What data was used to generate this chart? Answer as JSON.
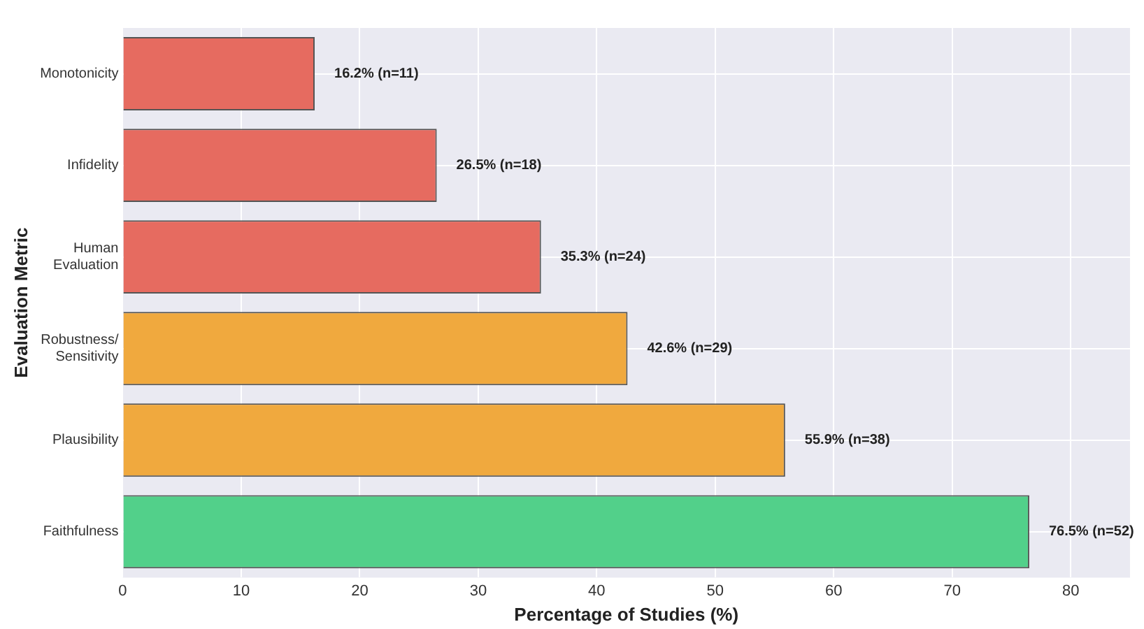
{
  "chart_data": {
    "type": "bar",
    "orientation": "horizontal",
    "xlabel": "Percentage of Studies (%)",
    "ylabel": "Evaluation Metric",
    "categories": [
      "Monotonicity",
      "Infidelity",
      "Human\nEvaluation",
      "Robustness/\nSensitivity",
      "Plausibility",
      "Faithfulness"
    ],
    "values": [
      16.2,
      26.5,
      35.3,
      42.6,
      55.9,
      76.5
    ],
    "colors": [
      "#e66b60",
      "#e66b60",
      "#e66b60",
      "#f0a93e",
      "#f0a93e",
      "#52d08a"
    ],
    "value_labels": [
      "16.2% (n=11)",
      "26.5% (n=18)",
      "35.3% (n=24)",
      "42.6% (n=29)",
      "55.9% (n=38)",
      "76.5% (n=52)"
    ],
    "xlim": [
      0,
      85
    ],
    "xticks": [
      0,
      10,
      20,
      30,
      40,
      50,
      60,
      70,
      80
    ],
    "grid": true,
    "legend": false
  }
}
